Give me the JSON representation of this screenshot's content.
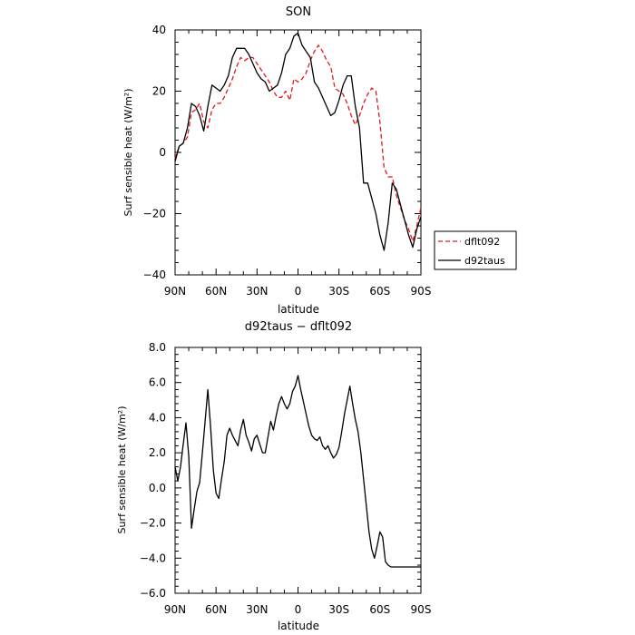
{
  "chart_data": [
    {
      "type": "line",
      "title": "SON",
      "xlabel": "latitude",
      "ylabel": "Surf sensible heat (W/m²)",
      "xlim": [
        90,
        -90
      ],
      "ylim": [
        -40,
        40
      ],
      "x_ticks": [
        90,
        60,
        30,
        0,
        -30,
        -60,
        -90
      ],
      "x_tick_labels": [
        "90N",
        "60N",
        "30N",
        "0",
        "30S",
        "60S",
        "90S"
      ],
      "y_ticks": [
        -40,
        -20,
        0,
        20,
        40
      ],
      "y_tick_labels": [
        "−40",
        "−20",
        "0",
        "20",
        "40"
      ],
      "legend": "right",
      "series": [
        {
          "name": "dflt092",
          "color": "#e01818",
          "dash": "dashed",
          "x": [
            90,
            87,
            84,
            81,
            78,
            75,
            72,
            69,
            66,
            63,
            60,
            57,
            54,
            51,
            48,
            45,
            42,
            39,
            36,
            33,
            30,
            27,
            24,
            21,
            18,
            15,
            12,
            9,
            6,
            3,
            0,
            -3,
            -6,
            -9,
            -12,
            -15,
            -18,
            -21,
            -24,
            -27,
            -30,
            -33,
            -36,
            -39,
            -42,
            -45,
            -48,
            -51,
            -54,
            -57,
            -60,
            -63,
            -66,
            -69,
            -72,
            -75,
            -78,
            -81,
            -84,
            -87,
            -90
          ],
          "values": [
            -2,
            2,
            3,
            5,
            13,
            14,
            16,
            10,
            8,
            14,
            16,
            16,
            18,
            21,
            24,
            28,
            31,
            30,
            31,
            31,
            29,
            27,
            25,
            23,
            20,
            18,
            18,
            20,
            17,
            24,
            23,
            24,
            26,
            30,
            33,
            35,
            33,
            30,
            28,
            21,
            20,
            19,
            16,
            12,
            9,
            12,
            16,
            19,
            21,
            20,
            10,
            -5,
            -8,
            -8,
            -14,
            -18,
            -22,
            -25,
            -29,
            -24,
            -18
          ]
        },
        {
          "name": "d92taus",
          "color": "#000000",
          "dash": "solid",
          "x": [
            90,
            87,
            84,
            81,
            78,
            75,
            72,
            69,
            66,
            63,
            60,
            57,
            54,
            51,
            48,
            45,
            42,
            39,
            36,
            33,
            30,
            27,
            24,
            21,
            18,
            15,
            12,
            9,
            6,
            3,
            0,
            -3,
            -6,
            -9,
            -12,
            -15,
            -18,
            -21,
            -24,
            -27,
            -30,
            -33,
            -36,
            -39,
            -42,
            -45,
            -48,
            -51,
            -54,
            -57,
            -60,
            -63,
            -66,
            -69,
            -72,
            -75,
            -78,
            -81,
            -84,
            -87,
            -90
          ],
          "values": [
            -3,
            2,
            3,
            8,
            16,
            15,
            12,
            7,
            15,
            22,
            21,
            20,
            22,
            25,
            31,
            34,
            34,
            34,
            32,
            29,
            26,
            24,
            23,
            20,
            21,
            22,
            26,
            32,
            34,
            38,
            39,
            35,
            33,
            31,
            23,
            21,
            18,
            15,
            12,
            13,
            17,
            22,
            25,
            25,
            15,
            8,
            -10,
            -10,
            -15,
            -20,
            -27,
            -32,
            -23,
            -10,
            -12,
            -17,
            -22,
            -27,
            -31,
            -25,
            -21
          ]
        }
      ]
    },
    {
      "type": "line",
      "title": "d92taus − dflt092",
      "xlabel": "latitude",
      "ylabel": "Surf sensible heat (W/m²)",
      "xlim": [
        90,
        -90
      ],
      "ylim": [
        -6,
        8
      ],
      "x_ticks": [
        90,
        60,
        30,
        0,
        -30,
        -60,
        -90
      ],
      "x_tick_labels": [
        "90N",
        "60N",
        "30N",
        "0",
        "30S",
        "60S",
        "90S"
      ],
      "y_ticks": [
        -6,
        -4,
        -2,
        0,
        2,
        4,
        6,
        8
      ],
      "y_tick_labels": [
        "−6.0",
        "−4.0",
        "−2.0",
        "0.0",
        "2.0",
        "4.0",
        "6.0",
        "8.0"
      ],
      "series": [
        {
          "color": "#000000",
          "dash": "solid",
          "x": [
            90,
            88,
            86,
            84,
            82,
            80,
            78,
            76,
            74,
            72,
            70,
            68,
            66,
            64,
            62,
            60,
            58,
            56,
            54,
            52,
            50,
            48,
            46,
            44,
            42,
            40,
            38,
            36,
            34,
            32,
            30,
            28,
            26,
            24,
            22,
            20,
            18,
            16,
            14,
            12,
            10,
            8,
            6,
            4,
            2,
            0,
            -2,
            -4,
            -6,
            -8,
            -10,
            -12,
            -14,
            -16,
            -18,
            -20,
            -22,
            -24,
            -26,
            -28,
            -30,
            -32,
            -34,
            -36,
            -38,
            -40,
            -42,
            -44,
            -46,
            -48,
            -50,
            -52,
            -54,
            -56,
            -58,
            -60,
            -62,
            -64,
            -66,
            -68,
            -70,
            -72,
            -74,
            -76,
            -78,
            -80,
            -82,
            -84,
            -86,
            -88,
            -90
          ],
          "values": [
            1.2,
            0.4,
            1.2,
            2.5,
            3.7,
            1.8,
            -2.3,
            -1.2,
            -0.2,
            0.3,
            2.0,
            3.8,
            5.6,
            3.5,
            1.0,
            -0.3,
            -0.6,
            0.5,
            1.5,
            3.0,
            3.4,
            3.0,
            2.7,
            2.4,
            3.3,
            3.9,
            3.0,
            2.6,
            2.1,
            2.8,
            3.0,
            2.5,
            2.0,
            2.0,
            2.9,
            3.8,
            3.3,
            4.1,
            4.8,
            5.2,
            4.8,
            4.5,
            4.8,
            5.5,
            5.8,
            6.4,
            5.6,
            4.9,
            4.2,
            3.5,
            3.0,
            2.8,
            2.7,
            2.9,
            2.4,
            2.2,
            2.4,
            2.0,
            1.7,
            1.9,
            2.3,
            3.2,
            4.2,
            5.0,
            5.8,
            4.8,
            3.9,
            3.2,
            2.0,
            0.5,
            -1.0,
            -2.5,
            -3.5,
            -4.0,
            -3.3,
            -2.5,
            -2.8,
            -4.2,
            -4.4,
            -4.5,
            -4.5,
            -4.5,
            -4.5,
            -4.5,
            -4.5,
            -4.5,
            -4.5,
            -4.5,
            -4.5,
            -4.5,
            -4.5
          ]
        }
      ]
    }
  ]
}
